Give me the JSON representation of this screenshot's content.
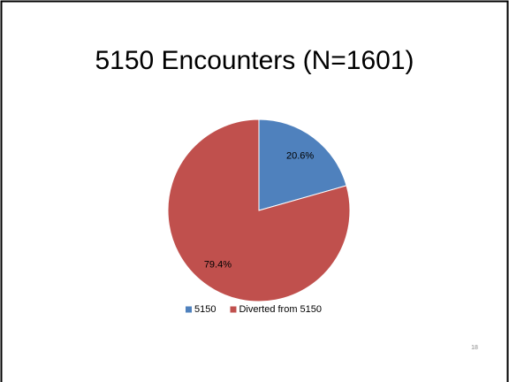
{
  "chart_data": {
    "type": "pie",
    "title": "5150 Encounters (N=1601)",
    "categories": [
      "5150",
      "Diverted from 5150"
    ],
    "values": [
      20.6,
      79.4
    ],
    "value_labels": [
      "20.6%",
      "79.4%"
    ],
    "colors": [
      "#4f81bd",
      "#c0504d"
    ],
    "legend": "bottom"
  },
  "page_number": "18"
}
